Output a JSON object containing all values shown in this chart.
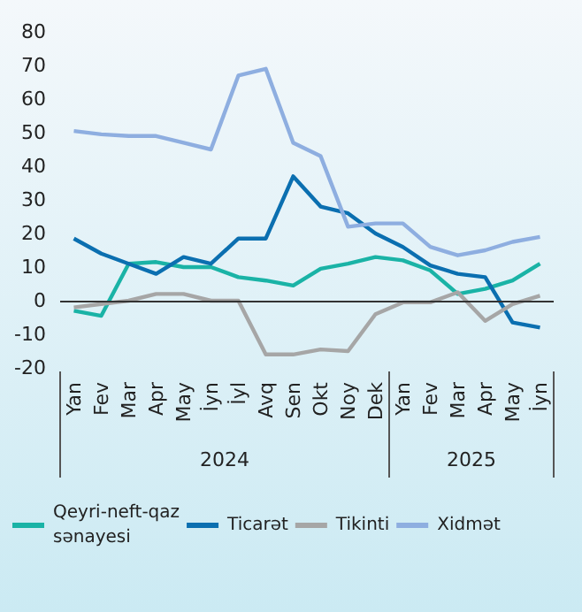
{
  "chart_data": {
    "type": "line",
    "categories": [
      "Yan",
      "Fev",
      "Mar",
      "Apr",
      "May",
      "İyn",
      "İyl",
      "Avq",
      "Sen",
      "Okt",
      "Noy",
      "Dek",
      "Yan",
      "Fev",
      "Mar",
      "Apr",
      "May",
      "İyn"
    ],
    "series": [
      {
        "name": "Qeyri-neft-qaz sənayesi",
        "color": "#1ab3a6",
        "values": [
          -3,
          -4.5,
          11,
          11.5,
          10,
          10,
          7,
          6,
          4.5,
          9.5,
          11,
          13,
          12,
          9,
          2,
          3.5,
          6,
          11
        ]
      },
      {
        "name": "Ticarət",
        "color": "#0b6fb0",
        "values": [
          18.5,
          14,
          11,
          8,
          13,
          11,
          18.5,
          18.5,
          37,
          28,
          26,
          20,
          16,
          10.5,
          8,
          7,
          -6.5,
          -8
        ]
      },
      {
        "name": "Tikinti",
        "color": "#a6a6a6",
        "values": [
          -2,
          -1,
          0,
          2,
          2,
          0,
          0,
          -16,
          -16,
          -14.5,
          -15,
          -4,
          -0.5,
          -0.5,
          2.5,
          -6,
          -1,
          1.5
        ]
      },
      {
        "name": "Xidmət",
        "color": "#8eaee0",
        "values": [
          50.5,
          49.5,
          49,
          49,
          47,
          45,
          67,
          69,
          47,
          43,
          22,
          23,
          23,
          16,
          13.5,
          15,
          17.5,
          19
        ]
      }
    ],
    "annotations": [
      "2024",
      "2025"
    ],
    "ref_lines": [
      {
        "axis": "y",
        "value": 0,
        "color": "#333333"
      }
    ],
    "ylim": [
      -20,
      80
    ],
    "yticks": [
      -20,
      -10,
      0,
      10,
      20,
      30,
      40,
      50,
      60,
      70,
      80
    ],
    "grid": false,
    "legend": "bottom",
    "marker": "none",
    "line_style": "solid"
  }
}
